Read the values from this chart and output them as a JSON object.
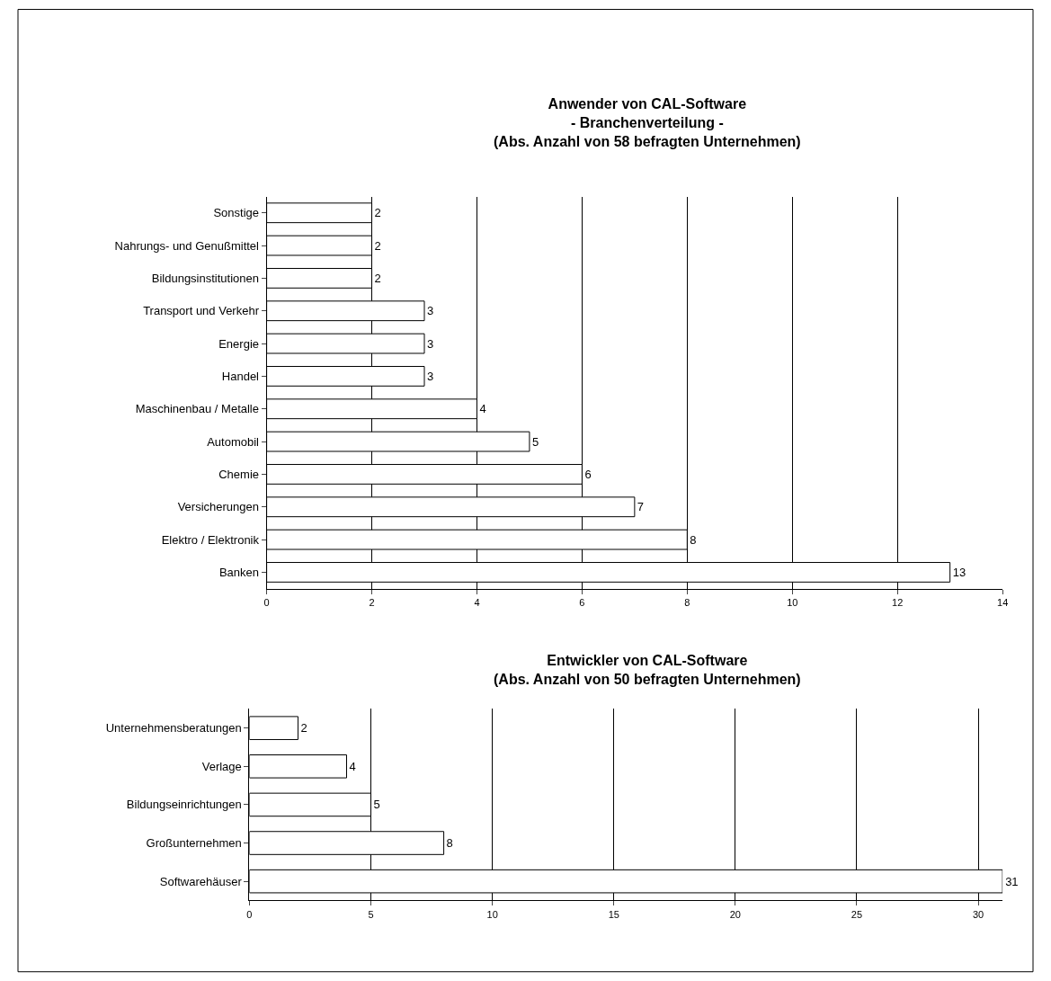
{
  "chart_data": [
    {
      "type": "bar",
      "orientation": "horizontal",
      "title": "Anwender von CAL-Software\n- Branchenverteilung -\n(Abs. Anzahl von 58 befragten Unternehmen)",
      "categories": [
        "Sonstige",
        "Nahrungs- und Genußmittel",
        "Bildungsinstitutionen",
        "Transport und Verkehr",
        "Energie",
        "Handel",
        "Maschinenbau / Metalle",
        "Automobil",
        "Chemie",
        "Versicherungen",
        "Elektro / Elektronik",
        "Banken"
      ],
      "values": [
        2,
        2,
        2,
        3,
        3,
        3,
        4,
        5,
        6,
        7,
        8,
        13
      ],
      "color": "#ffffff",
      "xlim": [
        0,
        14
      ],
      "xticks": [
        0,
        2,
        4,
        6,
        8,
        10,
        12,
        14
      ],
      "grid": "x",
      "data_labels": true
    },
    {
      "type": "bar",
      "orientation": "horizontal",
      "title": "Entwickler von CAL-Software\n(Abs. Anzahl von 50 befragten Unternehmen)",
      "categories": [
        "Unternehmensberatungen",
        "Verlage",
        "Bildungseinrichtungen",
        "Großunternehmen",
        "Softwarehäuser"
      ],
      "values": [
        2,
        4,
        5,
        8,
        31
      ],
      "color": "#ffffff",
      "xlim": [
        0,
        31
      ],
      "xticks": [
        0,
        5,
        10,
        15,
        20,
        25,
        30
      ],
      "grid": "x",
      "data_labels": true
    }
  ]
}
